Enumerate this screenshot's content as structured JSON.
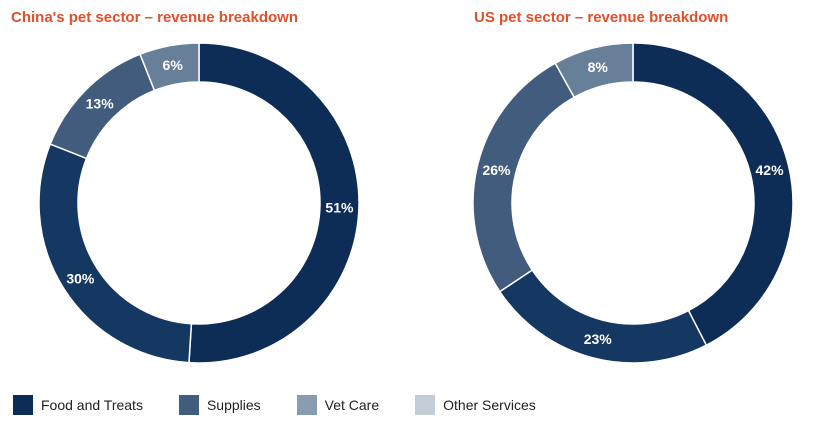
{
  "colors": {
    "title": "#e0502a",
    "food_and_treats": "#0d2d56",
    "supplies": "#415c7d",
    "vet_care": "#8a9cb1",
    "other_services": "#c3cdd7"
  },
  "legend": [
    {
      "label": "Food and Treats",
      "color": "#0d2d56"
    },
    {
      "label": "Supplies",
      "color": "#415c7d"
    },
    {
      "label": "Vet Care",
      "color": "#8a9cb1"
    },
    {
      "label": "Other Services",
      "color": "#c3cdd7"
    }
  ],
  "chart_data": [
    {
      "type": "pie",
      "donut": true,
      "title": "China's pet sector – revenue breakdown",
      "categories": [
        "Food and Treats",
        "Supplies",
        "Vet Care",
        "Other Services"
      ],
      "values": [
        51,
        30,
        13,
        6
      ],
      "value_labels": [
        "51%",
        "30%",
        "13%",
        "6%"
      ],
      "slice_colors": [
        "#0d2d56",
        "#143861",
        "#415c7d",
        "#687f99"
      ]
    },
    {
      "type": "pie",
      "donut": true,
      "title": "US pet sector – revenue breakdown",
      "categories": [
        "Food and Treats",
        "Supplies",
        "Vet Care",
        "Other Services"
      ],
      "values": [
        42,
        23,
        26,
        8
      ],
      "value_labels": [
        "42%",
        "23%",
        "26%",
        "8%"
      ],
      "slice_colors": [
        "#0d2d56",
        "#143861",
        "#415c7d",
        "#687f99"
      ]
    }
  ]
}
